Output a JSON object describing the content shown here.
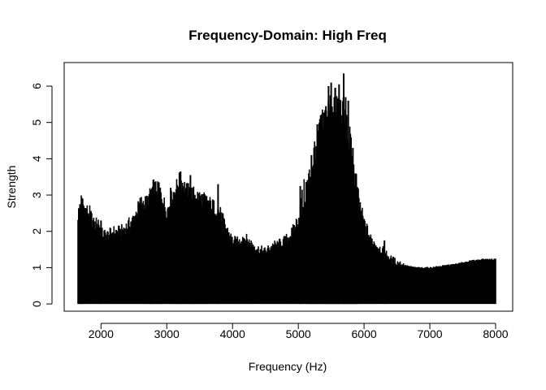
{
  "chart_data": {
    "type": "bar",
    "title": "Frequency-Domain: High Freq",
    "xlabel": "Frequency (Hz)",
    "ylabel": "Strength",
    "xlim": [
      1440,
      8260
    ],
    "ylim": [
      -0.2,
      6.65
    ],
    "x_ticks": [
      2000,
      3000,
      4000,
      5000,
      6000,
      7000,
      8000
    ],
    "y_ticks": [
      0,
      1,
      2,
      3,
      4,
      5,
      6
    ],
    "x_tick_labels": [
      "2000",
      "3000",
      "4000",
      "5000",
      "6000",
      "7000",
      "8000"
    ],
    "y_tick_labels": [
      "0",
      "1",
      "2",
      "3",
      "4",
      "5",
      "6"
    ],
    "grid": false,
    "legend": "none",
    "bar_color": "#000000",
    "envelope": [
      {
        "x": 1650,
        "y": 2.45
      },
      {
        "x": 1700,
        "y": 2.85
      },
      {
        "x": 1760,
        "y": 2.6
      },
      {
        "x": 1830,
        "y": 2.5
      },
      {
        "x": 1900,
        "y": 2.15
      },
      {
        "x": 1960,
        "y": 2.3
      },
      {
        "x": 2000,
        "y": 1.95
      },
      {
        "x": 2100,
        "y": 1.9
      },
      {
        "x": 2200,
        "y": 2.0
      },
      {
        "x": 2300,
        "y": 2.0
      },
      {
        "x": 2400,
        "y": 2.15
      },
      {
        "x": 2500,
        "y": 2.35
      },
      {
        "x": 2600,
        "y": 2.8
      },
      {
        "x": 2700,
        "y": 2.8
      },
      {
        "x": 2800,
        "y": 3.25
      },
      {
        "x": 2900,
        "y": 3.1
      },
      {
        "x": 3000,
        "y": 2.55
      },
      {
        "x": 3100,
        "y": 3.05
      },
      {
        "x": 3200,
        "y": 3.45
      },
      {
        "x": 3300,
        "y": 3.15
      },
      {
        "x": 3400,
        "y": 3.05
      },
      {
        "x": 3500,
        "y": 2.95
      },
      {
        "x": 3600,
        "y": 2.85
      },
      {
        "x": 3700,
        "y": 2.7
      },
      {
        "x": 3800,
        "y": 2.55
      },
      {
        "x": 3900,
        "y": 2.1
      },
      {
        "x": 4000,
        "y": 1.75
      },
      {
        "x": 4100,
        "y": 1.7
      },
      {
        "x": 4150,
        "y": 1.85
      },
      {
        "x": 4200,
        "y": 1.8
      },
      {
        "x": 4300,
        "y": 1.65
      },
      {
        "x": 4400,
        "y": 1.5
      },
      {
        "x": 4500,
        "y": 1.45
      },
      {
        "x": 4600,
        "y": 1.6
      },
      {
        "x": 4700,
        "y": 1.65
      },
      {
        "x": 4800,
        "y": 1.75
      },
      {
        "x": 4900,
        "y": 1.95
      },
      {
        "x": 5000,
        "y": 2.35
      },
      {
        "x": 5050,
        "y": 2.7
      },
      {
        "x": 5100,
        "y": 3.1
      },
      {
        "x": 5150,
        "y": 3.3
      },
      {
        "x": 5200,
        "y": 3.75
      },
      {
        "x": 5250,
        "y": 4.25
      },
      {
        "x": 5300,
        "y": 4.6
      },
      {
        "x": 5350,
        "y": 4.85
      },
      {
        "x": 5400,
        "y": 5.1
      },
      {
        "x": 5450,
        "y": 5.3
      },
      {
        "x": 5500,
        "y": 5.5
      },
      {
        "x": 5550,
        "y": 5.55
      },
      {
        "x": 5600,
        "y": 5.5
      },
      {
        "x": 5650,
        "y": 5.4
      },
      {
        "x": 5700,
        "y": 5.2
      },
      {
        "x": 5750,
        "y": 4.85
      },
      {
        "x": 5800,
        "y": 4.3
      },
      {
        "x": 5850,
        "y": 3.6
      },
      {
        "x": 5900,
        "y": 3.1
      },
      {
        "x": 5950,
        "y": 2.6
      },
      {
        "x": 6000,
        "y": 2.25
      },
      {
        "x": 6100,
        "y": 1.8
      },
      {
        "x": 6200,
        "y": 1.6
      },
      {
        "x": 6300,
        "y": 1.45
      },
      {
        "x": 6400,
        "y": 1.25
      },
      {
        "x": 6500,
        "y": 1.15
      },
      {
        "x": 6600,
        "y": 1.08
      },
      {
        "x": 6700,
        "y": 1.03
      },
      {
        "x": 6800,
        "y": 1.0
      },
      {
        "x": 7000,
        "y": 1.0
      },
      {
        "x": 7200,
        "y": 1.05
      },
      {
        "x": 7400,
        "y": 1.1
      },
      {
        "x": 7600,
        "y": 1.18
      },
      {
        "x": 7800,
        "y": 1.23
      },
      {
        "x": 8000,
        "y": 1.23
      }
    ],
    "peaks": [
      {
        "x": 1680,
        "y": 2.75
      },
      {
        "x": 1720,
        "y": 2.9
      },
      {
        "x": 2000,
        "y": 2.3
      },
      {
        "x": 2750,
        "y": 3.15
      },
      {
        "x": 2880,
        "y": 3.35
      },
      {
        "x": 3060,
        "y": 3.2
      },
      {
        "x": 3210,
        "y": 3.65
      },
      {
        "x": 3360,
        "y": 3.55
      },
      {
        "x": 3780,
        "y": 3.3
      },
      {
        "x": 5030,
        "y": 3.25
      },
      {
        "x": 5200,
        "y": 4.1
      },
      {
        "x": 5290,
        "y": 4.95
      },
      {
        "x": 5340,
        "y": 5.2
      },
      {
        "x": 5420,
        "y": 5.45
      },
      {
        "x": 5460,
        "y": 6.0
      },
      {
        "x": 5500,
        "y": 6.1
      },
      {
        "x": 5560,
        "y": 5.95
      },
      {
        "x": 5620,
        "y": 6.05
      },
      {
        "x": 5690,
        "y": 6.35
      },
      {
        "x": 5720,
        "y": 5.7
      },
      {
        "x": 5760,
        "y": 5.6
      },
      {
        "x": 5830,
        "y": 4.3
      },
      {
        "x": 5880,
        "y": 3.4
      },
      {
        "x": 6310,
        "y": 1.75
      }
    ],
    "series_x_range": [
      1650,
      8000
    ],
    "bar_count": 640
  }
}
